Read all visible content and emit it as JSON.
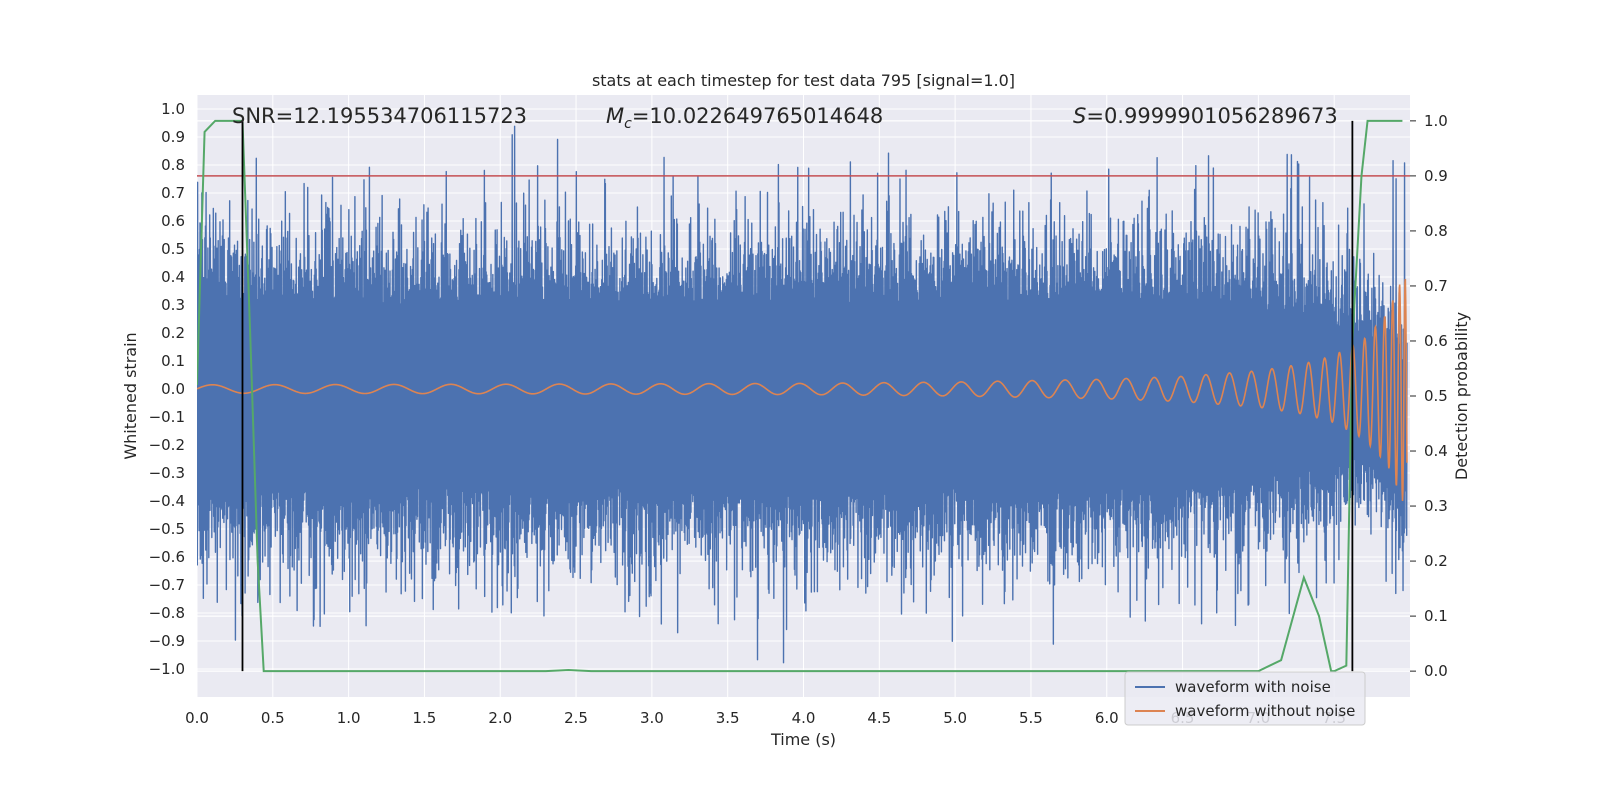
{
  "chart_data": {
    "type": "line",
    "title": "stats at each timestep for test data 795 [signal=1.0]",
    "xlabel": "Time (s)",
    "ylabel": "Whitened strain",
    "y2label": "Detection probability",
    "xlim": [
      0.0,
      8.0
    ],
    "ylim": [
      -1.1,
      1.05
    ],
    "y2lim": [
      -0.047,
      1.047
    ],
    "grid": true,
    "x_ticks": [
      "0.0",
      "0.5",
      "1.0",
      "1.5",
      "2.0",
      "2.5",
      "3.0",
      "3.5",
      "4.0",
      "4.5",
      "5.0",
      "5.5",
      "6.0",
      "6.5",
      "7.0",
      "7.5"
    ],
    "y_ticks": [
      "1.0",
      "0.9",
      "0.8",
      "0.7",
      "0.6",
      "0.5",
      "0.4",
      "0.3",
      "0.2",
      "0.1",
      "0.0",
      "-0.1",
      "-0.2",
      "-0.3",
      "-0.4",
      "-0.5",
      "-0.6",
      "-0.7",
      "-0.8",
      "-0.9",
      "-1.0"
    ],
    "y2_ticks": [
      "1.0",
      "0.9",
      "0.8",
      "0.7",
      "0.6",
      "0.5",
      "0.4",
      "0.3",
      "0.2",
      "0.1",
      "0.0"
    ],
    "annotations": {
      "snr": "SNR=12.195534706115723",
      "mc_symbol": "M",
      "mc_sub": "c",
      "mc_value": "=10.022649765014648",
      "s_symbol": "S",
      "s_value": "=0.9999901056289673"
    },
    "legend": {
      "placement": "lower-right",
      "entries": [
        "waveform with noise",
        "waveform without noise"
      ]
    },
    "colors": {
      "noise": "#4c72b0",
      "clean": "#dd8452",
      "probability": "#55a868",
      "threshold": "#c44e52",
      "marker": "#000000",
      "background": "#eaeaf2"
    },
    "threshold_probability": 0.9,
    "marker_times": [
      0.3,
      7.62
    ],
    "noise_envelope": {
      "t": [
        0.0,
        1.0,
        2.0,
        3.0,
        4.0,
        5.0,
        6.0,
        7.0,
        7.5,
        7.8,
        7.95
      ],
      "upper": [
        0.3,
        0.3,
        0.3,
        0.3,
        0.3,
        0.3,
        0.3,
        0.28,
        0.22,
        0.12,
        0.0
      ],
      "lower": [
        -0.35,
        -0.35,
        -0.35,
        -0.35,
        -0.35,
        -0.35,
        -0.35,
        -0.3,
        -0.25,
        -0.18,
        -0.35
      ]
    },
    "clean_envelope": {
      "t": [
        0.0,
        2.0,
        4.0,
        5.0,
        6.0,
        6.5,
        7.0,
        7.3,
        7.5,
        7.7,
        7.85,
        7.95
      ],
      "amp": [
        0.015,
        0.017,
        0.02,
        0.025,
        0.035,
        0.045,
        0.065,
        0.09,
        0.12,
        0.18,
        0.27,
        0.4
      ]
    },
    "series": [
      {
        "name": "waveform with noise",
        "style": "dense strain trace"
      },
      {
        "name": "waveform without noise",
        "style": "chirp trace"
      },
      {
        "style": "detection probability",
        "x": [
          0.0,
          0.05,
          0.12,
          0.25,
          0.3,
          0.35,
          0.4,
          0.44,
          1.0,
          2.0,
          2.3,
          2.45,
          2.6,
          3.0,
          4.0,
          5.0,
          6.0,
          7.0,
          7.15,
          7.3,
          7.4,
          7.48,
          7.5,
          7.58,
          7.62,
          7.68,
          7.72,
          7.8,
          7.95
        ],
        "y": [
          0.52,
          0.98,
          1.0,
          1.0,
          1.0,
          0.62,
          0.2,
          0.0,
          0.0,
          0.0,
          0.0,
          0.002,
          0.0,
          0.0,
          0.0,
          0.0,
          0.0,
          0.0,
          0.02,
          0.17,
          0.1,
          0.0,
          0.0,
          0.01,
          0.6,
          0.9,
          1.0,
          1.0,
          1.0
        ]
      }
    ]
  }
}
